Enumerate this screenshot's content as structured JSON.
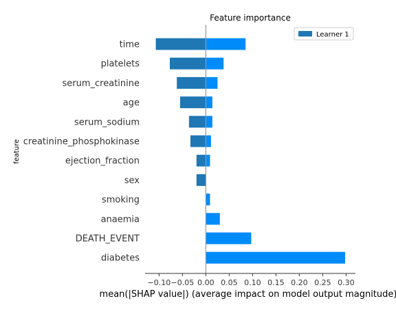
{
  "chart_data": {
    "type": "bar",
    "orientation": "horizontal",
    "title": "Feature importance",
    "xlabel": "mean(|SHAP value|) (average impact on model output magnitude)",
    "ylabel": "feature",
    "xlim": [
      -0.13,
      0.32
    ],
    "x_ticks": [
      -0.1,
      -0.05,
      0.0,
      0.05,
      0.1,
      0.15,
      0.2,
      0.25,
      0.3
    ],
    "x_tick_labels": [
      "−0.10",
      "−0.05",
      "0.00",
      "0.05",
      "0.10",
      "0.15",
      "0.20",
      "0.25",
      "0.30"
    ],
    "categories": [
      "time",
      "platelets",
      "serum_creatinine",
      "age",
      "serum_sodium",
      "creatinine_phosphokinase",
      "ejection_fraction",
      "sex",
      "smoking",
      "anaemia",
      "DEATH_EVENT",
      "diabetes"
    ],
    "series": [
      {
        "name": "Learner 1",
        "color": "#1f77b4",
        "values": [
          -0.107,
          -0.077,
          -0.062,
          -0.055,
          -0.036,
          -0.033,
          -0.02,
          -0.02,
          0.0,
          0.0,
          0.0,
          0.0
        ]
      },
      {
        "color": "#008bfb",
        "values": [
          0.085,
          0.038,
          0.025,
          0.014,
          0.014,
          0.011,
          0.009,
          0.0,
          0.009,
          0.03,
          0.097,
          0.298
        ]
      }
    ],
    "legend": {
      "position": "top-right",
      "entries": [
        "Learner 1"
      ]
    },
    "grid": false
  }
}
